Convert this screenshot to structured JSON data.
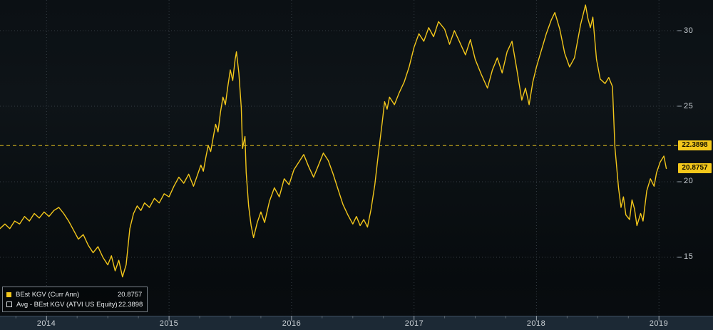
{
  "colors": {
    "background": "#0b1014",
    "grid": "#343c43",
    "axis_text": "#ccd2d7",
    "line": "#f3c71b",
    "avg_line": "#dcbc1e",
    "value_box_bg": "#f3c71b",
    "value_box_text": "#141000",
    "xaxis_band_bg": "#1c2935",
    "xaxis_band_border": "#3d4d5e",
    "tick_major": "#9aa4ad",
    "tick_minor": "#5a6670"
  },
  "legend": {
    "items": [
      {
        "swatch": "filled-yellow-square",
        "label": "BEst KGV (Curr Ann)",
        "value": "20.8757"
      },
      {
        "swatch": "outline-square",
        "label": "Avg - BEst KGV (ATVI US Equity)",
        "value": "22.3898"
      }
    ]
  },
  "axis": {
    "avg_box_label": "22.3898",
    "last_box_label": "20.8757"
  },
  "chart_data": {
    "type": "line",
    "title": "",
    "xlabel": "",
    "ylabel": "",
    "grid": "dotted",
    "legend_position": "bottom-left",
    "xlim": [
      2013.62,
      2019.15
    ],
    "ylim": [
      11.13,
      32.03
    ],
    "y_ticks": [
      30,
      25,
      20,
      15
    ],
    "x_ticks": [
      2014,
      2015,
      2016,
      2017,
      2018,
      2019
    ],
    "last_value": 20.8757,
    "average_line": {
      "label": "Avg - BEst KGV (ATVI US Equity)",
      "value": 22.3898,
      "style": "dashed",
      "color": "#dcbc1e"
    },
    "series": [
      {
        "name": "BEst KGV (Curr Ann)",
        "color": "#f3c71b",
        "points": [
          [
            2013.62,
            16.9
          ],
          [
            2013.66,
            17.2
          ],
          [
            2013.7,
            16.9
          ],
          [
            2013.74,
            17.4
          ],
          [
            2013.78,
            17.2
          ],
          [
            2013.82,
            17.7
          ],
          [
            2013.86,
            17.4
          ],
          [
            2013.9,
            17.9
          ],
          [
            2013.94,
            17.6
          ],
          [
            2013.98,
            18.0
          ],
          [
            2014.02,
            17.7
          ],
          [
            2014.06,
            18.1
          ],
          [
            2014.1,
            18.3
          ],
          [
            2014.14,
            17.9
          ],
          [
            2014.18,
            17.4
          ],
          [
            2014.22,
            16.8
          ],
          [
            2014.26,
            16.2
          ],
          [
            2014.3,
            16.5
          ],
          [
            2014.34,
            15.8
          ],
          [
            2014.38,
            15.3
          ],
          [
            2014.42,
            15.7
          ],
          [
            2014.46,
            15.0
          ],
          [
            2014.5,
            14.5
          ],
          [
            2014.53,
            15.1
          ],
          [
            2014.56,
            14.1
          ],
          [
            2014.59,
            14.8
          ],
          [
            2014.62,
            13.7
          ],
          [
            2014.65,
            14.5
          ],
          [
            2014.68,
            16.9
          ],
          [
            2014.71,
            17.9
          ],
          [
            2014.74,
            18.4
          ],
          [
            2014.77,
            18.1
          ],
          [
            2014.8,
            18.6
          ],
          [
            2014.84,
            18.3
          ],
          [
            2014.88,
            18.9
          ],
          [
            2014.92,
            18.6
          ],
          [
            2014.96,
            19.2
          ],
          [
            2015.0,
            19.0
          ],
          [
            2015.04,
            19.7
          ],
          [
            2015.08,
            20.3
          ],
          [
            2015.12,
            19.9
          ],
          [
            2015.16,
            20.5
          ],
          [
            2015.2,
            19.7
          ],
          [
            2015.23,
            20.4
          ],
          [
            2015.26,
            21.1
          ],
          [
            2015.28,
            20.7
          ],
          [
            2015.3,
            21.6
          ],
          [
            2015.32,
            22.4
          ],
          [
            2015.34,
            22.0
          ],
          [
            2015.36,
            22.9
          ],
          [
            2015.38,
            23.8
          ],
          [
            2015.4,
            23.3
          ],
          [
            2015.42,
            24.6
          ],
          [
            2015.44,
            25.6
          ],
          [
            2015.46,
            25.1
          ],
          [
            2015.48,
            26.3
          ],
          [
            2015.5,
            27.4
          ],
          [
            2015.52,
            26.7
          ],
          [
            2015.54,
            28.1
          ],
          [
            2015.55,
            28.6
          ],
          [
            2015.57,
            27.2
          ],
          [
            2015.59,
            24.9
          ],
          [
            2015.6,
            22.2
          ],
          [
            2015.62,
            23.0
          ],
          [
            2015.63,
            20.6
          ],
          [
            2015.65,
            18.4
          ],
          [
            2015.67,
            17.1
          ],
          [
            2015.69,
            16.3
          ],
          [
            2015.72,
            17.3
          ],
          [
            2015.75,
            18.0
          ],
          [
            2015.78,
            17.3
          ],
          [
            2015.82,
            18.7
          ],
          [
            2015.86,
            19.6
          ],
          [
            2015.9,
            19.0
          ],
          [
            2015.94,
            20.2
          ],
          [
            2015.98,
            19.8
          ],
          [
            2016.02,
            20.8
          ],
          [
            2016.06,
            21.3
          ],
          [
            2016.1,
            21.8
          ],
          [
            2016.14,
            21.0
          ],
          [
            2016.18,
            20.3
          ],
          [
            2016.22,
            21.1
          ],
          [
            2016.26,
            21.9
          ],
          [
            2016.3,
            21.4
          ],
          [
            2016.34,
            20.5
          ],
          [
            2016.38,
            19.5
          ],
          [
            2016.42,
            18.5
          ],
          [
            2016.46,
            17.8
          ],
          [
            2016.5,
            17.2
          ],
          [
            2016.53,
            17.7
          ],
          [
            2016.56,
            17.1
          ],
          [
            2016.59,
            17.5
          ],
          [
            2016.62,
            17.0
          ],
          [
            2016.65,
            18.2
          ],
          [
            2016.68,
            19.8
          ],
          [
            2016.71,
            21.9
          ],
          [
            2016.74,
            23.9
          ],
          [
            2016.76,
            25.3
          ],
          [
            2016.78,
            24.8
          ],
          [
            2016.8,
            25.6
          ],
          [
            2016.84,
            25.1
          ],
          [
            2016.88,
            25.9
          ],
          [
            2016.92,
            26.6
          ],
          [
            2016.96,
            27.6
          ],
          [
            2017.0,
            28.9
          ],
          [
            2017.04,
            29.8
          ],
          [
            2017.08,
            29.3
          ],
          [
            2017.12,
            30.2
          ],
          [
            2017.16,
            29.6
          ],
          [
            2017.2,
            30.6
          ],
          [
            2017.25,
            30.1
          ],
          [
            2017.29,
            29.1
          ],
          [
            2017.33,
            30.0
          ],
          [
            2017.37,
            29.3
          ],
          [
            2017.42,
            28.4
          ],
          [
            2017.46,
            29.4
          ],
          [
            2017.5,
            28.1
          ],
          [
            2017.55,
            27.1
          ],
          [
            2017.6,
            26.2
          ],
          [
            2017.64,
            27.4
          ],
          [
            2017.68,
            28.2
          ],
          [
            2017.72,
            27.2
          ],
          [
            2017.76,
            28.6
          ],
          [
            2017.8,
            29.3
          ],
          [
            2017.84,
            27.4
          ],
          [
            2017.88,
            25.4
          ],
          [
            2017.91,
            26.2
          ],
          [
            2017.94,
            25.1
          ],
          [
            2017.97,
            26.6
          ],
          [
            2018.0,
            27.6
          ],
          [
            2018.04,
            28.7
          ],
          [
            2018.08,
            29.8
          ],
          [
            2018.12,
            30.7
          ],
          [
            2018.15,
            31.2
          ],
          [
            2018.19,
            30.1
          ],
          [
            2018.23,
            28.5
          ],
          [
            2018.27,
            27.6
          ],
          [
            2018.31,
            28.2
          ],
          [
            2018.36,
            30.4
          ],
          [
            2018.4,
            31.7
          ],
          [
            2018.42,
            30.8
          ],
          [
            2018.44,
            30.2
          ],
          [
            2018.46,
            30.9
          ],
          [
            2018.49,
            28.1
          ],
          [
            2018.52,
            26.8
          ],
          [
            2018.56,
            26.5
          ],
          [
            2018.59,
            26.9
          ],
          [
            2018.62,
            26.3
          ],
          [
            2018.64,
            22.3
          ],
          [
            2018.67,
            19.6
          ],
          [
            2018.69,
            18.3
          ],
          [
            2018.71,
            19.0
          ],
          [
            2018.73,
            17.8
          ],
          [
            2018.76,
            17.5
          ],
          [
            2018.78,
            18.8
          ],
          [
            2018.8,
            18.2
          ],
          [
            2018.82,
            17.1
          ],
          [
            2018.85,
            17.9
          ],
          [
            2018.87,
            17.4
          ],
          [
            2018.9,
            19.4
          ],
          [
            2018.93,
            20.2
          ],
          [
            2018.96,
            19.7
          ],
          [
            2018.98,
            20.6
          ],
          [
            2019.01,
            21.3
          ],
          [
            2019.04,
            21.7
          ],
          [
            2019.06,
            20.8757
          ]
        ]
      }
    ]
  }
}
